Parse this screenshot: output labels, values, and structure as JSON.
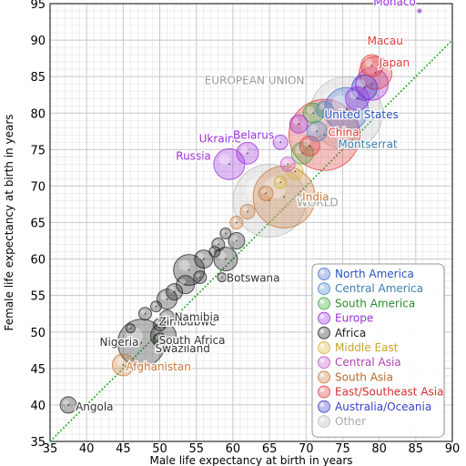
{
  "chart_data": {
    "type": "scatter",
    "title": "",
    "xlabel": "Male life expectancy at birth in years",
    "ylabel": "Female life expectancy at birth in years",
    "xlim": [
      35,
      90
    ],
    "ylim": [
      35,
      95
    ],
    "x_ticks": [
      "35",
      "40",
      "45",
      "50",
      "55",
      "60",
      "65",
      "70",
      "75",
      "80",
      "85",
      "90"
    ],
    "y_ticks": [
      "35",
      "40",
      "45",
      "50",
      "55",
      "60",
      "65",
      "70",
      "75",
      "80",
      "85",
      "90",
      "95"
    ],
    "grid": true,
    "reference_line": "y = x",
    "legend_position": "bottom-right",
    "legend": [
      {
        "label": "North America",
        "color": "#4a6fd1"
      },
      {
        "label": "Central America",
        "color": "#4a86c8"
      },
      {
        "label": "South America",
        "color": "#3cab3c"
      },
      {
        "label": "Europe",
        "color": "#9b30d9"
      },
      {
        "label": "Africa",
        "color": "#222222"
      },
      {
        "label": "Middle East",
        "color": "#d9b43c"
      },
      {
        "label": "Central Asia",
        "color": "#cc55cc"
      },
      {
        "label": "South Asia",
        "color": "#c8783c"
      },
      {
        "label": "East/Southeast Asia",
        "color": "#e03c3c"
      },
      {
        "label": "Australia/Oceania",
        "color": "#3c3cc8"
      },
      {
        "label": "Other",
        "color": "#bbbbbb"
      }
    ],
    "points": [
      {
        "x": 37.5,
        "y": 40.0,
        "r": 9,
        "region": "Africa",
        "label": "Angola"
      },
      {
        "x": 45.0,
        "y": 45.5,
        "r": 12,
        "region": "South Asia",
        "label": "Afghanistan"
      },
      {
        "x": 47.5,
        "y": 48.5,
        "r": 26,
        "region": "Africa",
        "label": "Nigeria"
      },
      {
        "x": 50.0,
        "y": 49.0,
        "r": 7,
        "region": "Africa",
        "label": "Swaziland"
      },
      {
        "x": 50.5,
        "y": 49.5,
        "r": 14,
        "region": "Africa",
        "label": "South Africa"
      },
      {
        "x": 50.0,
        "y": 51.0,
        "r": 7,
        "region": "Africa",
        "label": "Zimbabwe"
      },
      {
        "x": 51.0,
        "y": 52.0,
        "r": 8,
        "region": "Africa",
        "label": "Namibia"
      },
      {
        "x": 58.5,
        "y": 57.5,
        "r": 5,
        "region": "Africa",
        "label": "Botswana"
      },
      {
        "x": 46.0,
        "y": 50.5,
        "r": 5,
        "region": "Africa",
        "label": ""
      },
      {
        "x": 48.0,
        "y": 52.5,
        "r": 7,
        "region": "Africa",
        "label": ""
      },
      {
        "x": 49.5,
        "y": 53.5,
        "r": 6,
        "region": "Africa",
        "label": ""
      },
      {
        "x": 51.0,
        "y": 54.5,
        "r": 11,
        "region": "Africa",
        "label": ""
      },
      {
        "x": 52.0,
        "y": 55.5,
        "r": 9,
        "region": "Africa",
        "label": ""
      },
      {
        "x": 53.5,
        "y": 56.5,
        "r": 10,
        "region": "Africa",
        "label": ""
      },
      {
        "x": 54.0,
        "y": 58.5,
        "r": 17,
        "region": "Africa",
        "label": ""
      },
      {
        "x": 55.5,
        "y": 57.5,
        "r": 7,
        "region": "Africa",
        "label": ""
      },
      {
        "x": 56.0,
        "y": 60.0,
        "r": 10,
        "region": "Africa",
        "label": ""
      },
      {
        "x": 57.5,
        "y": 61.0,
        "r": 6,
        "region": "Africa",
        "label": ""
      },
      {
        "x": 58.0,
        "y": 62.0,
        "r": 7,
        "region": "Africa",
        "label": ""
      },
      {
        "x": 59.0,
        "y": 60.0,
        "r": 13,
        "region": "Africa",
        "label": ""
      },
      {
        "x": 59.0,
        "y": 63.5,
        "r": 6,
        "region": "Africa",
        "label": ""
      },
      {
        "x": 60.5,
        "y": 62.5,
        "r": 9,
        "region": "Africa",
        "label": ""
      },
      {
        "x": 60.5,
        "y": 65.0,
        "r": 7,
        "region": "South Asia",
        "label": ""
      },
      {
        "x": 62.0,
        "y": 66.5,
        "r": 8,
        "region": "South Asia",
        "label": ""
      },
      {
        "x": 64.5,
        "y": 69.0,
        "r": 8,
        "region": "South Asia",
        "label": ""
      },
      {
        "x": 65.0,
        "y": 68.0,
        "r": 40,
        "region": "Other",
        "label": "WORLD"
      },
      {
        "x": 67.0,
        "y": 68.5,
        "r": 34,
        "region": "South Asia",
        "label": "India"
      },
      {
        "x": 66.5,
        "y": 70.5,
        "r": 7,
        "region": "Middle East",
        "label": ""
      },
      {
        "x": 68.5,
        "y": 72.0,
        "r": 9,
        "region": "Middle East",
        "label": ""
      },
      {
        "x": 67.5,
        "y": 73.0,
        "r": 8,
        "region": "Central Asia",
        "label": ""
      },
      {
        "x": 69.5,
        "y": 74.5,
        "r": 12,
        "region": "South America",
        "label": ""
      },
      {
        "x": 70.5,
        "y": 75.5,
        "r": 11,
        "region": "East/Southeast Asia",
        "label": ""
      },
      {
        "x": 71.5,
        "y": 77.5,
        "r": 11,
        "region": "Central America",
        "label": "Montserrat"
      },
      {
        "x": 72.5,
        "y": 77.0,
        "r": 39,
        "region": "East/Southeast Asia",
        "label": "China"
      },
      {
        "x": 59.5,
        "y": 73.0,
        "r": 17,
        "region": "Europe",
        "label": "Russia"
      },
      {
        "x": 62.0,
        "y": 74.5,
        "r": 12,
        "region": "Europe",
        "label": "Ukraine"
      },
      {
        "x": 66.5,
        "y": 76.0,
        "r": 8,
        "region": "Europe",
        "label": "Belarus"
      },
      {
        "x": 69.0,
        "y": 78.5,
        "r": 10,
        "region": "Europe",
        "label": ""
      },
      {
        "x": 71.0,
        "y": 80.0,
        "r": 11,
        "region": "South America",
        "label": ""
      },
      {
        "x": 72.5,
        "y": 80.5,
        "r": 9,
        "region": "Central America",
        "label": ""
      },
      {
        "x": 75.5,
        "y": 80.0,
        "r": 40,
        "region": "Other",
        "label": "EUROPEAN UNION"
      },
      {
        "x": 75.5,
        "y": 80.5,
        "r": 24,
        "region": "North America",
        "label": "United States"
      },
      {
        "x": 77.0,
        "y": 82.0,
        "r": 13,
        "region": "Europe",
        "label": ""
      },
      {
        "x": 78.0,
        "y": 83.5,
        "r": 14,
        "region": "Australia/Oceania",
        "label": ""
      },
      {
        "x": 79.0,
        "y": 84.0,
        "r": 18,
        "region": "Europe",
        "label": ""
      },
      {
        "x": 79.5,
        "y": 85.5,
        "r": 18,
        "region": "East/Southeast Asia",
        "label": "Japan"
      },
      {
        "x": 79.0,
        "y": 86.5,
        "r": 12,
        "region": "East/Southeast Asia",
        "label": "Macau"
      },
      {
        "x": 85.5,
        "y": 94.0,
        "r": 2,
        "region": "Europe",
        "label": "Monaco"
      }
    ]
  }
}
